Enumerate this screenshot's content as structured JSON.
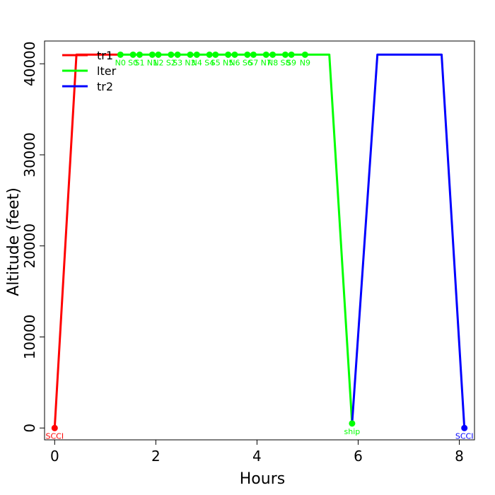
{
  "chart_data": {
    "type": "line",
    "title": "",
    "xlabel": "Hours",
    "ylabel": "Altitude (feet)",
    "xlim": [
      -0.2,
      8.3
    ],
    "ylim": [
      -1300,
      42500
    ],
    "x_ticks": [
      0,
      2,
      4,
      6,
      8
    ],
    "x_tick_labels": [
      "0",
      "2",
      "4",
      "6",
      "8"
    ],
    "y_ticks": [
      0,
      10000,
      20000,
      30000,
      40000
    ],
    "y_tick_labels": [
      "0",
      "10000",
      "20000",
      "30000",
      "40000"
    ],
    "grid": false,
    "legend_position": "top-left",
    "series": [
      {
        "name": "tr1",
        "color": "#ff0000",
        "points": [
          [
            0.0,
            0
          ],
          [
            0.43,
            41000
          ],
          [
            1.3,
            41000
          ]
        ]
      },
      {
        "name": "lter",
        "color": "#00ff00",
        "points": [
          [
            1.3,
            41000
          ],
          [
            5.43,
            41000
          ],
          [
            5.88,
            500
          ]
        ]
      },
      {
        "name": "tr2",
        "color": "#0000ff",
        "points": [
          [
            5.88,
            500
          ],
          [
            6.38,
            41000
          ],
          [
            7.65,
            41000
          ],
          [
            8.1,
            0
          ]
        ]
      }
    ],
    "point_labels": [
      {
        "series": "tr1",
        "x": 0.0,
        "y": 0,
        "label": "SCCI",
        "color": "#ff0000"
      },
      {
        "series": "lter",
        "x": 1.3,
        "y": 41000,
        "label": "N0",
        "color": "#00ff00"
      },
      {
        "series": "lter",
        "x": 1.55,
        "y": 41000,
        "label": "S0",
        "color": "#00ff00"
      },
      {
        "series": "lter",
        "x": 1.68,
        "y": 41000,
        "label": "S1",
        "color": "#00ff00"
      },
      {
        "series": "lter",
        "x": 1.93,
        "y": 41000,
        "label": "N1",
        "color": "#00ff00"
      },
      {
        "series": "lter",
        "x": 2.05,
        "y": 41000,
        "label": "N2",
        "color": "#00ff00"
      },
      {
        "series": "lter",
        "x": 2.3,
        "y": 41000,
        "label": "S2",
        "color": "#00ff00"
      },
      {
        "series": "lter",
        "x": 2.43,
        "y": 41000,
        "label": "S3",
        "color": "#00ff00"
      },
      {
        "series": "lter",
        "x": 2.68,
        "y": 41000,
        "label": "N3",
        "color": "#00ff00"
      },
      {
        "series": "lter",
        "x": 2.81,
        "y": 41000,
        "label": "N4",
        "color": "#00ff00"
      },
      {
        "series": "lter",
        "x": 3.06,
        "y": 41000,
        "label": "S4",
        "color": "#00ff00"
      },
      {
        "series": "lter",
        "x": 3.18,
        "y": 41000,
        "label": "S5",
        "color": "#00ff00"
      },
      {
        "series": "lter",
        "x": 3.43,
        "y": 41000,
        "label": "N5",
        "color": "#00ff00"
      },
      {
        "series": "lter",
        "x": 3.56,
        "y": 41000,
        "label": "N6",
        "color": "#00ff00"
      },
      {
        "series": "lter",
        "x": 3.81,
        "y": 41000,
        "label": "S6",
        "color": "#00ff00"
      },
      {
        "series": "lter",
        "x": 3.93,
        "y": 41000,
        "label": "S7",
        "color": "#00ff00"
      },
      {
        "series": "lter",
        "x": 4.18,
        "y": 41000,
        "label": "N7",
        "color": "#00ff00"
      },
      {
        "series": "lter",
        "x": 4.31,
        "y": 41000,
        "label": "N8",
        "color": "#00ff00"
      },
      {
        "series": "lter",
        "x": 4.56,
        "y": 41000,
        "label": "S8",
        "color": "#00ff00"
      },
      {
        "series": "lter",
        "x": 4.68,
        "y": 41000,
        "label": "S9",
        "color": "#00ff00"
      },
      {
        "series": "lter",
        "x": 4.95,
        "y": 41000,
        "label": "N9",
        "color": "#00ff00"
      },
      {
        "series": "lter",
        "x": 5.88,
        "y": 500,
        "label": "ship",
        "color": "#00ff00"
      },
      {
        "series": "tr2",
        "x": 8.1,
        "y": 0,
        "label": "SCCI",
        "color": "#0000ff"
      }
    ]
  }
}
